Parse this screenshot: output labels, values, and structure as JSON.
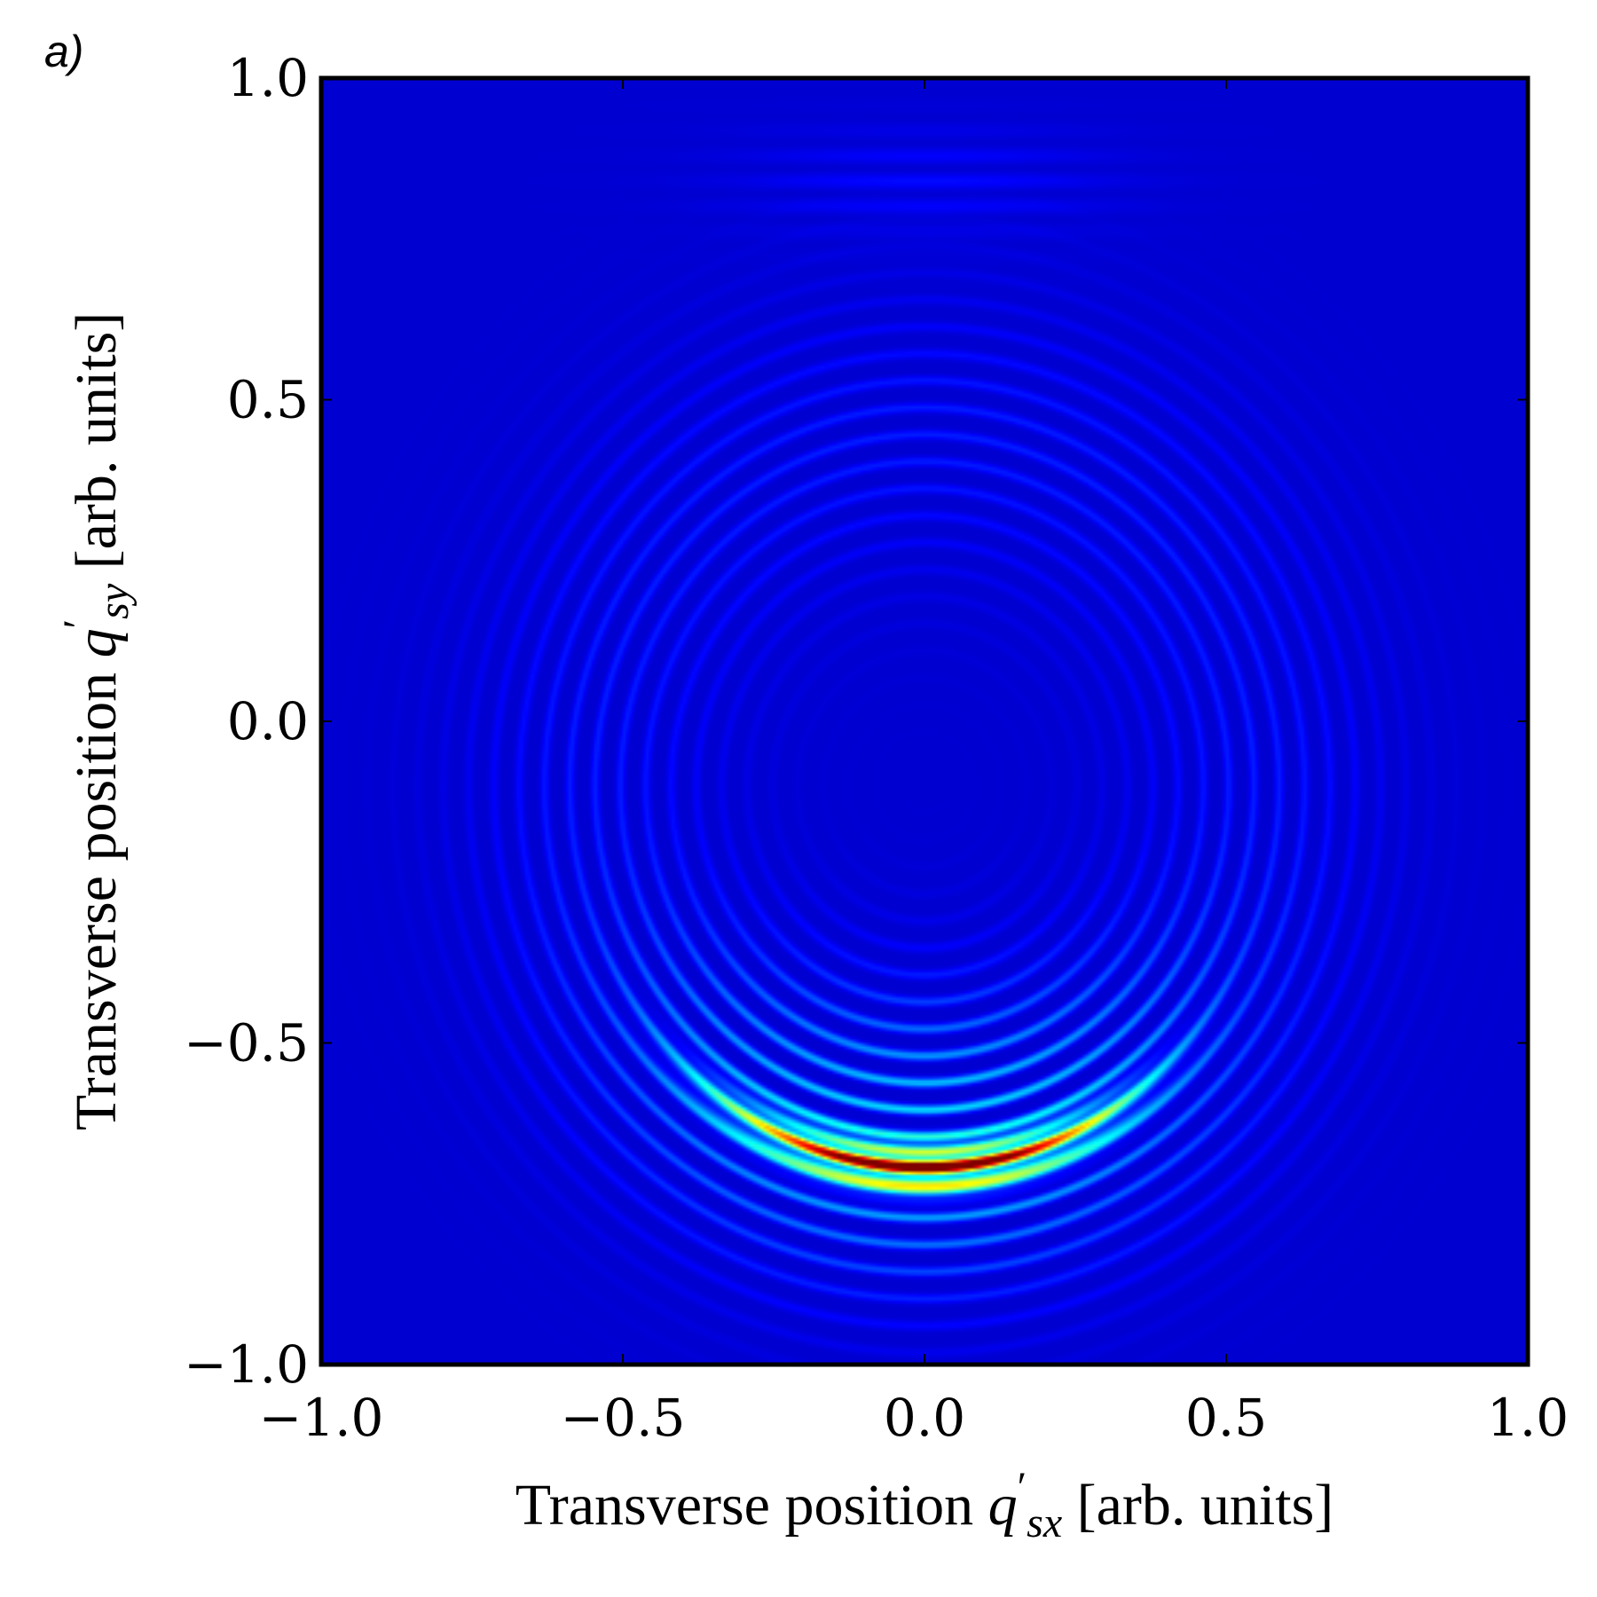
{
  "chart_data": {
    "type": "heatmap",
    "panel_label": "a)",
    "colormap": "jet",
    "xlim": [
      -1.0,
      1.0
    ],
    "ylim": [
      -1.0,
      1.0
    ],
    "x_ticks": [
      "−1.0",
      "−0.5",
      "0.0",
      "0.5",
      "1.0"
    ],
    "x_tick_values": [
      -1.0,
      -0.5,
      0.0,
      0.5,
      1.0
    ],
    "y_ticks": [
      "−1.0",
      "−0.5",
      "0.0",
      "0.5",
      "1.0"
    ],
    "y_tick_values": [
      -1.0,
      -0.5,
      0.0,
      0.5,
      1.0
    ],
    "xlabel": {
      "prefix": "Transverse position ",
      "symbol": "q",
      "prime": "′",
      "subscript": "sx",
      "suffix": " [arb. units]"
    },
    "ylabel": {
      "prefix": "Transverse position ",
      "symbol": "q",
      "prime": "′",
      "subscript": "sy",
      "suffix": " [arb. units]"
    },
    "intensity_features": [
      {
        "description": "bright crescent arc",
        "center": [
          0.0,
          -0.1
        ],
        "radius": 0.6,
        "peak": 1.0
      },
      {
        "description": "faint interference rings",
        "center": [
          0.0,
          -0.1
        ],
        "radius_range": [
          0.3,
          0.85
        ],
        "peak": 0.25
      }
    ],
    "grid": false
  }
}
